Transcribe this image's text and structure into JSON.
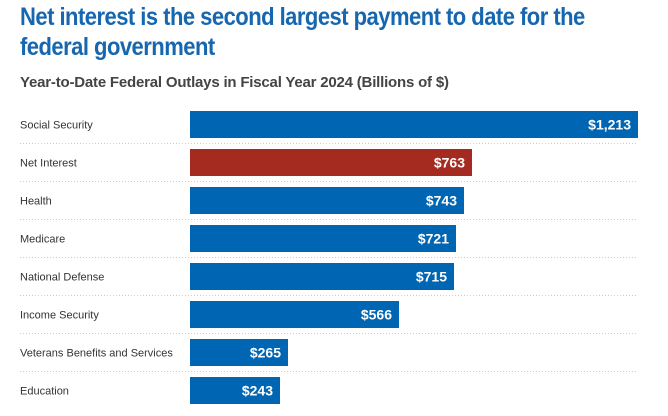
{
  "header": {
    "title": "Net interest is the second largest payment to date for the federal government",
    "subtitle": "Year-to-Date Federal Outlays in Fiscal Year 2024 (Billions of $)"
  },
  "colors": {
    "default_bar": "#0066b3",
    "highlight_bar": "#a52a20",
    "title": "#1666b0",
    "grid": "#cccccc"
  },
  "chart_data": {
    "type": "bar",
    "orientation": "horizontal",
    "title": "Net interest is the second largest payment to date for the federal government",
    "subtitle": "Year-to-Date Federal Outlays in Fiscal Year 2024 (Billions of $)",
    "xlabel": "",
    "ylabel": "",
    "categories": [
      "Social Security",
      "Net Interest",
      "Health",
      "Medicare",
      "National Defense",
      "Income Security",
      "Veterans Benefits and Services",
      "Education"
    ],
    "values": [
      1213,
      763,
      743,
      721,
      715,
      566,
      265,
      243
    ],
    "value_labels": [
      "$1,213",
      "$763",
      "$743",
      "$721",
      "$715",
      "$566",
      "$265",
      "$243"
    ],
    "highlight": [
      "Net Interest"
    ],
    "xlim": [
      0,
      1213
    ],
    "grid": "dotted row separators",
    "legend": "none"
  }
}
